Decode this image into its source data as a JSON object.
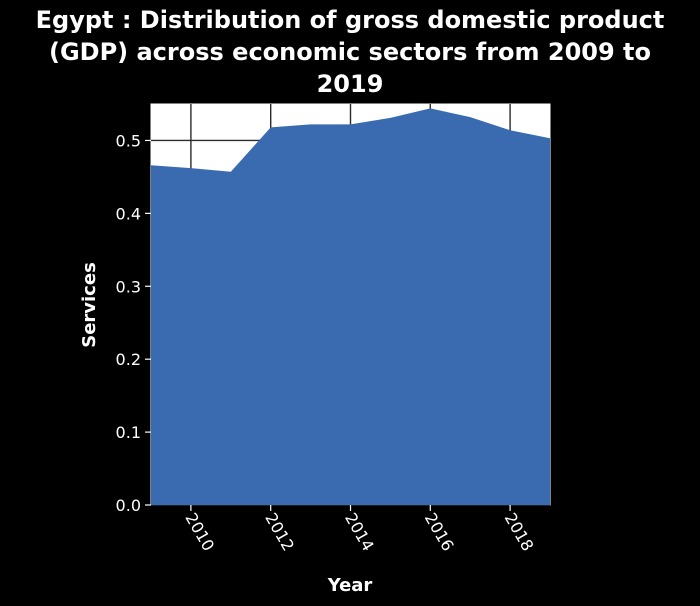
{
  "chart_data": {
    "type": "area",
    "title_lines": [
      "Egypt : Distribution of gross domestic product",
      "(GDP) across economic sectors from 2009 to",
      "2019"
    ],
    "xlabel": "Year",
    "ylabel": "Services",
    "x": [
      2009,
      2010,
      2011,
      2012,
      2013,
      2014,
      2015,
      2016,
      2017,
      2018,
      2019
    ],
    "y": [
      0.466,
      0.462,
      0.457,
      0.518,
      0.522,
      0.522,
      0.531,
      0.544,
      0.532,
      0.514,
      0.503
    ],
    "xlim": [
      2009,
      2019
    ],
    "ylim": [
      0,
      0.55
    ],
    "x_ticks": [
      2010,
      2012,
      2014,
      2016,
      2018
    ],
    "y_ticks": [
      0.0,
      0.1,
      0.2,
      0.3,
      0.4,
      0.5
    ],
    "y_tick_labels": [
      "0.0",
      "0.1",
      "0.2",
      "0.3",
      "0.4",
      "0.5"
    ],
    "grid": true,
    "colors": {
      "background": "#000000",
      "fill": "#3a6aaf",
      "grid": "#2b2b2b",
      "text": "#ffffff"
    }
  }
}
